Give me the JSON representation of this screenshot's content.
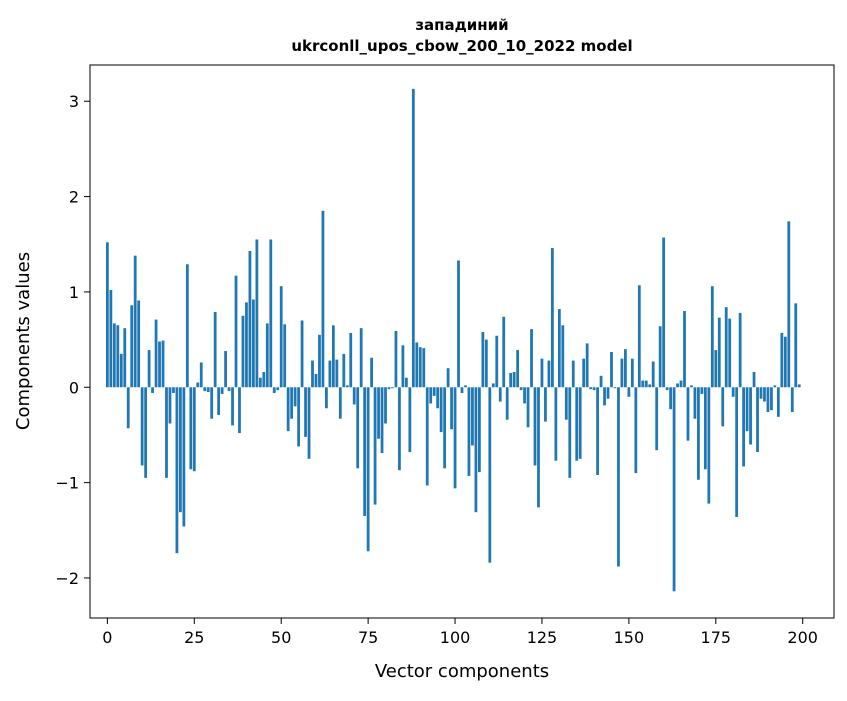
{
  "chart_data": {
    "type": "bar",
    "title_line1": "западиний",
    "title_line2": "ukrconll_upos_cbow_200_10_2022 model",
    "xlabel": "Vector components",
    "ylabel": "Components values",
    "xlim": [
      -5,
      209
    ],
    "ylim": [
      -2.42,
      3.38
    ],
    "xticks": [
      0,
      25,
      50,
      75,
      100,
      125,
      150,
      175,
      200
    ],
    "yticks": [
      -2,
      -1,
      0,
      1,
      2,
      3
    ],
    "ytick_labels": [
      "−2",
      "−1",
      "0",
      "1",
      "2",
      "3"
    ],
    "grid": false,
    "bar_color": "#1f77b4",
    "values": [
      1.52,
      1.02,
      0.67,
      0.65,
      0.35,
      0.62,
      -0.43,
      0.86,
      1.38,
      0.91,
      -0.82,
      -0.95,
      0.39,
      -0.06,
      0.71,
      0.48,
      0.49,
      -0.95,
      -0.38,
      -0.06,
      -1.74,
      -1.31,
      -1.46,
      1.29,
      -0.86,
      -0.88,
      0.05,
      0.26,
      -0.04,
      -0.05,
      -0.33,
      0.79,
      -0.29,
      -0.07,
      0.38,
      -0.04,
      -0.4,
      1.17,
      -0.48,
      0.75,
      0.89,
      1.43,
      0.92,
      1.55,
      0.1,
      0.16,
      0.67,
      1.55,
      -0.06,
      -0.03,
      1.06,
      0.66,
      -0.46,
      -0.33,
      -0.2,
      -0.62,
      0.7,
      -0.52,
      -0.75,
      0.28,
      0.14,
      0.55,
      1.85,
      -0.22,
      0.28,
      0.65,
      0.29,
      -0.33,
      0.35,
      0.02,
      0.57,
      -0.18,
      -0.85,
      0.62,
      -1.35,
      -1.72,
      0.31,
      -1.23,
      -0.54,
      -0.69,
      -0.38,
      -0.02,
      -0.01,
      0.59,
      -0.87,
      0.44,
      0.1,
      -0.68,
      3.13,
      0.47,
      0.42,
      0.41,
      -1.03,
      -0.17,
      -0.09,
      -0.22,
      -0.47,
      -0.85,
      0.2,
      -0.44,
      -1.06,
      1.33,
      -0.06,
      0.02,
      -0.93,
      -0.61,
      -1.31,
      -0.89,
      0.58,
      0.5,
      -1.84,
      0.04,
      0.54,
      -0.15,
      0.74,
      -0.34,
      0.15,
      0.16,
      0.39,
      -0.03,
      -0.17,
      -0.42,
      0.61,
      -0.82,
      -1.26,
      0.3,
      -0.36,
      0.28,
      1.46,
      -0.77,
      0.82,
      0.65,
      -0.34,
      -0.95,
      0.28,
      -0.77,
      -0.75,
      0.3,
      0.46,
      -0.02,
      -0.03,
      -0.92,
      0.12,
      -0.19,
      -0.12,
      0.37,
      -0.01,
      -1.88,
      0.3,
      0.4,
      -0.1,
      0.3,
      -0.9,
      1.07,
      0.07,
      0.07,
      0.03,
      0.27,
      -0.66,
      0.64,
      1.57,
      -0.03,
      -0.23,
      -2.14,
      0.04,
      0.07,
      0.8,
      -0.56,
      0.02,
      -0.33,
      -0.97,
      -0.07,
      -0.86,
      -1.22,
      1.06,
      0.39,
      0.73,
      -0.41,
      0.84,
      0.72,
      -0.1,
      -1.36,
      0.78,
      -0.83,
      -0.46,
      -0.6,
      0.16,
      -0.68,
      -0.12,
      -0.15,
      -0.26,
      -0.24,
      0.02,
      -0.31,
      0.57,
      0.53,
      1.74,
      -0.26,
      0.88,
      0.03
    ]
  }
}
